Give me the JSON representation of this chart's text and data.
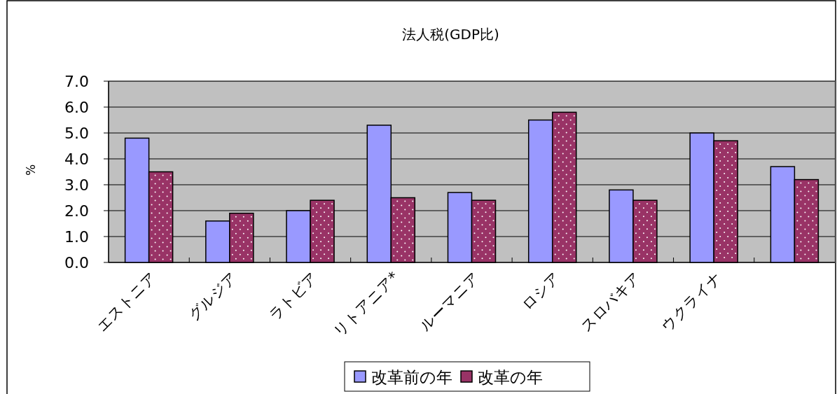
{
  "chart_data": {
    "type": "bar",
    "title": "法人税(GDP比)",
    "ylabel": "%",
    "categories": [
      "エストニア",
      "グルジア",
      "ラトビア",
      "リトアニア*",
      "ルーマニア",
      "ロシア",
      "スロバキア",
      "ウクライナ",
      null
    ],
    "series": [
      {
        "name": "改革前の年",
        "color": "#9999ff",
        "values": [
          4.8,
          1.6,
          2.0,
          5.3,
          2.7,
          5.5,
          2.8,
          5.0,
          3.7
        ]
      },
      {
        "name": "改革の年",
        "color": "#993366",
        "values": [
          3.5,
          1.9,
          2.4,
          2.5,
          2.4,
          5.8,
          2.4,
          4.7,
          3.2
        ]
      }
    ],
    "ylim": [
      0,
      7
    ],
    "yticks": [
      {
        "value": 0,
        "label": "0.0"
      },
      {
        "value": 1,
        "label": "1.0"
      },
      {
        "value": 2,
        "label": "2.0"
      },
      {
        "value": 3,
        "label": "3.0"
      },
      {
        "value": 4,
        "label": "4.0"
      },
      {
        "value": 5,
        "label": "5.0"
      },
      {
        "value": 6,
        "label": "6.0"
      },
      {
        "value": 7,
        "label": "7.0"
      }
    ],
    "grid": "y",
    "legend": "bottom"
  }
}
